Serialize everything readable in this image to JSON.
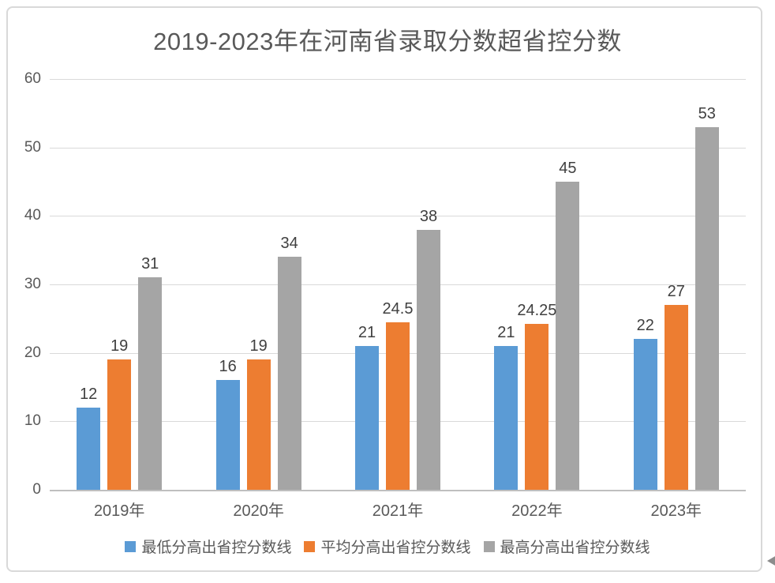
{
  "title": "2019-2023年在河南省录取分数超省控分数",
  "chart_data": {
    "type": "bar",
    "title": "2019-2023年在河南省录取分数超省控分数",
    "categories": [
      "2019年",
      "2020年",
      "2021年",
      "2022年",
      "2023年"
    ],
    "series": [
      {
        "name": "最低分高出省控分数线",
        "color": "#5B9BD5",
        "values": [
          12,
          16,
          21,
          21,
          22
        ],
        "labels": [
          "12",
          "16",
          "21",
          "21",
          "22"
        ]
      },
      {
        "name": "平均分高出省控分数线",
        "color": "#ED7D31",
        "values": [
          19,
          19,
          24.5,
          24.25,
          27
        ],
        "labels": [
          "19",
          "19",
          "24.5",
          "24.25",
          "27"
        ]
      },
      {
        "name": "最高分高出省控分数线",
        "color": "#A5A5A5",
        "values": [
          31,
          34,
          38,
          45,
          53
        ],
        "labels": [
          "31",
          "34",
          "38",
          "45",
          "53"
        ]
      }
    ],
    "xlabel": "",
    "ylabel": "",
    "ylim": [
      0,
      60
    ],
    "yticks": [
      0,
      10,
      20,
      30,
      40,
      50,
      60
    ],
    "grid": true,
    "data_labels": true,
    "legend_position": "bottom"
  },
  "icons": {
    "cursor_arrow": "left-pointing-triangle"
  },
  "colors": {
    "series_min": "#5B9BD5",
    "series_avg": "#ED7D31",
    "series_max": "#A5A5A5",
    "gridline": "#D9D9D9",
    "axis_baseline": "#BFBFBF",
    "axis_text": "#595959",
    "data_label_text": "#404040",
    "title_text": "#595959",
    "frame_border": "#D9D9D9",
    "background": "#FFFFFF"
  }
}
